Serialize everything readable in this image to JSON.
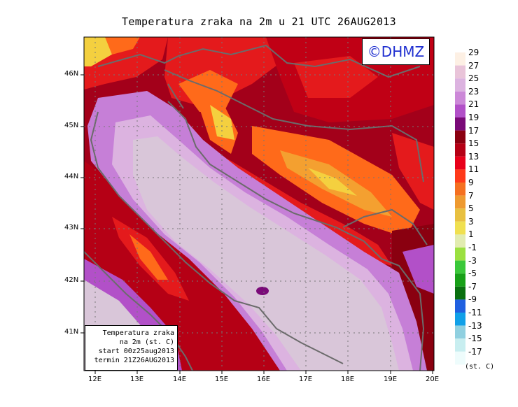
{
  "title": "Temperatura zraka na 2m u 21 UTC 26AUG2013",
  "copyright": "©DHMZ",
  "info_box": {
    "line1": "Temperatura zraka",
    "line2": "na 2m (st. C)",
    "line3": "start 00z25aug2013",
    "line4": "termin 21Z26AUG2013"
  },
  "lon_labels": [
    "12E",
    "13E",
    "14E",
    "15E",
    "16E",
    "17E",
    "18E",
    "19E",
    "20E"
  ],
  "lat_labels": [
    "46N",
    "45N",
    "44N",
    "43N",
    "42N",
    "41N"
  ],
  "colorbar": {
    "units": "(st. C)",
    "labels": [
      "29",
      "27",
      "25",
      "23",
      "21",
      "19",
      "17",
      "15",
      "13",
      "11",
      "9",
      "7",
      "5",
      "3",
      "1",
      "-1",
      "-3",
      "-5",
      "-7",
      "-9",
      "-11",
      "-13",
      "-15",
      "-17"
    ],
    "colors": [
      "#fdf0e4",
      "#e9c4d9",
      "#dcb3e0",
      "#cc88d8",
      "#b250c8",
      "#7a0a78",
      "#8a0010",
      "#b50015",
      "#e8001a",
      "#ff3a1a",
      "#f57020",
      "#ee9a30",
      "#e8c040",
      "#f0e050",
      "#e2ecb0",
      "#9be040",
      "#3ac83a",
      "#18a018",
      "#0a7010",
      "#2060e0",
      "#10a0e8",
      "#90d0e0",
      "#c8eef0",
      "#eefcfc"
    ]
  },
  "colors": {
    "adriatic": "#d9c6d9",
    "coast_purple": "#c67fd7",
    "land_dark_red": "#a3001a",
    "land_red": "#e41a1c",
    "land_orange": "#ff6a1a",
    "land_yellow": "#f4d03f",
    "border_grey": "#6b6b6b"
  }
}
